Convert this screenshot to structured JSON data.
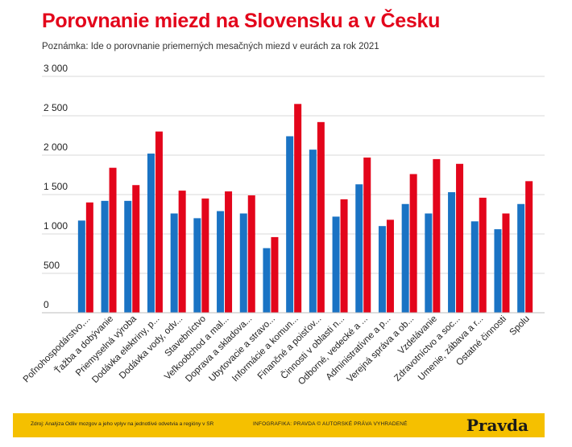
{
  "title": "Porovnanie miezd na Slovensku a v Česku",
  "subtitle": "Poznámka: Ide o porovnanie priemerných mesačných miezd v eurách za rok 2021",
  "footer": {
    "source": "Zdroj: Analýza Odliv mozgov a jeho vplyv na jednotlivé odvetvia a regióny v SR",
    "credit": "INFOGRAFIKA: PRAVDA © AUTORSKÉ PRÁVA VYHRADENÉ",
    "brand": "Pravda"
  },
  "colors": {
    "sk": "#1a73c4",
    "cz": "#e3051b",
    "title": "#e3051b",
    "footer_bg": "#f5c000"
  },
  "chart_data": {
    "type": "bar",
    "ylim": [
      0,
      3000
    ],
    "yticks": [
      0,
      500,
      1000,
      1500,
      2000,
      2500,
      3000
    ],
    "ytick_labels": [
      "0",
      "500",
      "1 000",
      "1 500",
      "2 000",
      "2 500",
      "3 000"
    ],
    "categories": [
      "Poľnohospodárstvo,...",
      "Ťažba a dobývanie",
      "Priemyselná výroba",
      "Dodávka elektriny, p...",
      "Dodávka vody, odv...",
      "Stavebníctvo",
      "Veľkoobchod a mal...",
      "Doprava a skladova...",
      "Ubytovacie a stravo...",
      "Informácie a komun...",
      "Finančné a poisťov...",
      "Činnosti v oblasti n...",
      "Odborné, vedecké a ...",
      "Administratívne a p...",
      "Verejná správa a ob...",
      "Vzdelávanie",
      "Zdravotníctvo a soc...",
      "Umenie, zábava a r...",
      "Ostatné činnosti",
      "Spolu"
    ],
    "series": [
      {
        "values": [
          1170,
          1420,
          1420,
          2020,
          1260,
          1200,
          1290,
          1260,
          820,
          2240,
          2070,
          1220,
          1630,
          1100,
          1380,
          1260,
          1530,
          1160,
          1060,
          1380
        ]
      },
      {
        "values": [
          1400,
          1840,
          1620,
          2300,
          1550,
          1450,
          1540,
          1490,
          960,
          2650,
          2420,
          1440,
          1970,
          1180,
          1760,
          1950,
          1890,
          1460,
          1260,
          1670
        ]
      }
    ]
  }
}
